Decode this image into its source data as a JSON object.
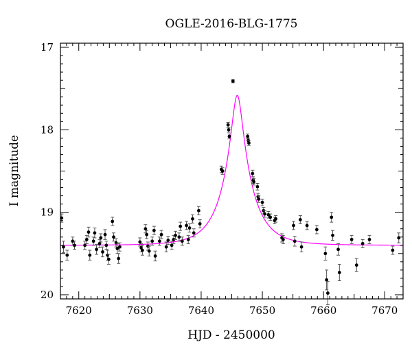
{
  "chart_data": {
    "type": "scatter",
    "title": "OGLE-2016-BLG-1775",
    "xlabel": "HJD - 2450000",
    "ylabel": "I magnitude",
    "xlim": [
      7617,
      7673
    ],
    "ylim": [
      20.05,
      16.95
    ],
    "y_inverted": true,
    "x_ticks": [
      7620,
      7630,
      7640,
      7650,
      7660,
      7670
    ],
    "x_tick_labels": [
      "7620",
      "7630",
      "7640",
      "7650",
      "7660",
      "7670"
    ],
    "y_ticks": [
      17,
      18,
      19,
      20
    ],
    "y_tick_labels": [
      "17",
      "18",
      "19",
      "20"
    ],
    "grid": false,
    "colors": {
      "data": "#000000",
      "model": "#ff00ff"
    },
    "series": [
      {
        "kind": "observations",
        "points": [
          [
            7617.2,
            19.07,
            0.05
          ],
          [
            7617.5,
            19.42,
            0.07
          ],
          [
            7618.1,
            19.52,
            0.06
          ],
          [
            7619.0,
            19.35,
            0.05
          ],
          [
            7619.3,
            19.4,
            0.05
          ],
          [
            7621.0,
            19.4,
            0.05
          ],
          [
            7621.3,
            19.33,
            0.05
          ],
          [
            7621.6,
            19.24,
            0.06
          ],
          [
            7621.8,
            19.52,
            0.06
          ],
          [
            7622.4,
            19.35,
            0.05
          ],
          [
            7622.6,
            19.25,
            0.06
          ],
          [
            7622.9,
            19.45,
            0.06
          ],
          [
            7623.4,
            19.38,
            0.05
          ],
          [
            7623.6,
            19.31,
            0.05
          ],
          [
            7623.9,
            19.48,
            0.06
          ],
          [
            7624.3,
            19.27,
            0.06
          ],
          [
            7624.5,
            19.4,
            0.05
          ],
          [
            7624.7,
            19.52,
            0.06
          ],
          [
            7624.9,
            19.57,
            0.06
          ],
          [
            7625.5,
            19.11,
            0.05
          ],
          [
            7625.7,
            19.3,
            0.05
          ],
          [
            7626.1,
            19.37,
            0.05
          ],
          [
            7626.3,
            19.44,
            0.06
          ],
          [
            7626.5,
            19.56,
            0.06
          ],
          [
            7626.7,
            19.42,
            0.05
          ],
          [
            7630.0,
            19.36,
            0.05
          ],
          [
            7630.2,
            19.43,
            0.05
          ],
          [
            7630.4,
            19.46,
            0.06
          ],
          [
            7630.9,
            19.2,
            0.05
          ],
          [
            7631.1,
            19.27,
            0.05
          ],
          [
            7631.3,
            19.41,
            0.05
          ],
          [
            7631.5,
            19.47,
            0.06
          ],
          [
            7632.0,
            19.35,
            0.05
          ],
          [
            7632.3,
            19.22,
            0.05
          ],
          [
            7632.5,
            19.53,
            0.06
          ],
          [
            7633.2,
            19.35,
            0.05
          ],
          [
            7633.5,
            19.27,
            0.05
          ],
          [
            7634.3,
            19.42,
            0.06
          ],
          [
            7634.6,
            19.34,
            0.05
          ],
          [
            7635.2,
            19.4,
            0.05
          ],
          [
            7635.5,
            19.33,
            0.05
          ],
          [
            7635.8,
            19.28,
            0.05
          ],
          [
            7636.4,
            19.3,
            0.05
          ],
          [
            7636.6,
            19.17,
            0.05
          ],
          [
            7636.9,
            19.35,
            0.05
          ],
          [
            7637.6,
            19.16,
            0.05
          ],
          [
            7637.9,
            19.33,
            0.05
          ],
          [
            7638.1,
            19.19,
            0.05
          ],
          [
            7638.6,
            19.08,
            0.05
          ],
          [
            7638.8,
            19.25,
            0.05
          ],
          [
            7639.6,
            18.98,
            0.05
          ],
          [
            7639.8,
            19.14,
            0.05
          ],
          [
            7643.3,
            18.48,
            0.04
          ],
          [
            7643.5,
            18.5,
            0.04
          ],
          [
            7644.4,
            17.94,
            0.03
          ],
          [
            7644.5,
            18.0,
            0.03
          ],
          [
            7644.6,
            18.08,
            0.03
          ],
          [
            7645.2,
            17.41,
            0.02
          ],
          [
            7647.6,
            18.08,
            0.03
          ],
          [
            7647.7,
            18.13,
            0.03
          ],
          [
            7647.8,
            18.16,
            0.03
          ],
          [
            7648.4,
            18.53,
            0.04
          ],
          [
            7648.5,
            18.61,
            0.04
          ],
          [
            7648.6,
            18.63,
            0.04
          ],
          [
            7649.2,
            18.69,
            0.04
          ],
          [
            7649.3,
            18.81,
            0.04
          ],
          [
            7649.4,
            18.84,
            0.04
          ],
          [
            7650.0,
            18.88,
            0.04
          ],
          [
            7650.2,
            18.98,
            0.04
          ],
          [
            7650.4,
            19.02,
            0.04
          ],
          [
            7651.0,
            19.03,
            0.04
          ],
          [
            7651.3,
            19.06,
            0.04
          ],
          [
            7652.0,
            19.1,
            0.04
          ],
          [
            7652.2,
            19.08,
            0.04
          ],
          [
            7653.2,
            19.31,
            0.05
          ],
          [
            7653.4,
            19.33,
            0.05
          ],
          [
            7655.1,
            19.16,
            0.05
          ],
          [
            7655.3,
            19.35,
            0.06
          ],
          [
            7656.2,
            19.09,
            0.05
          ],
          [
            7656.4,
            19.42,
            0.06
          ],
          [
            7657.3,
            19.16,
            0.05
          ],
          [
            7658.9,
            19.21,
            0.05
          ],
          [
            7660.3,
            19.5,
            0.08
          ],
          [
            7660.5,
            19.82,
            0.12
          ],
          [
            7660.7,
            19.98,
            0.14
          ],
          [
            7661.3,
            19.06,
            0.06
          ],
          [
            7661.5,
            19.28,
            0.06
          ],
          [
            7662.4,
            19.45,
            0.07
          ],
          [
            7662.6,
            19.73,
            0.1
          ],
          [
            7664.6,
            19.33,
            0.05
          ],
          [
            7665.4,
            19.64,
            0.08
          ],
          [
            7666.4,
            19.38,
            0.05
          ],
          [
            7667.5,
            19.33,
            0.05
          ],
          [
            7671.3,
            19.46,
            0.05
          ],
          [
            7672.3,
            19.31,
            0.06
          ]
        ]
      },
      {
        "kind": "model",
        "model": {
          "t0": 7645.9,
          "tE": 4.5,
          "u0": 0.19,
          "baseline": 19.4,
          "fs": 1.0
        }
      }
    ]
  }
}
